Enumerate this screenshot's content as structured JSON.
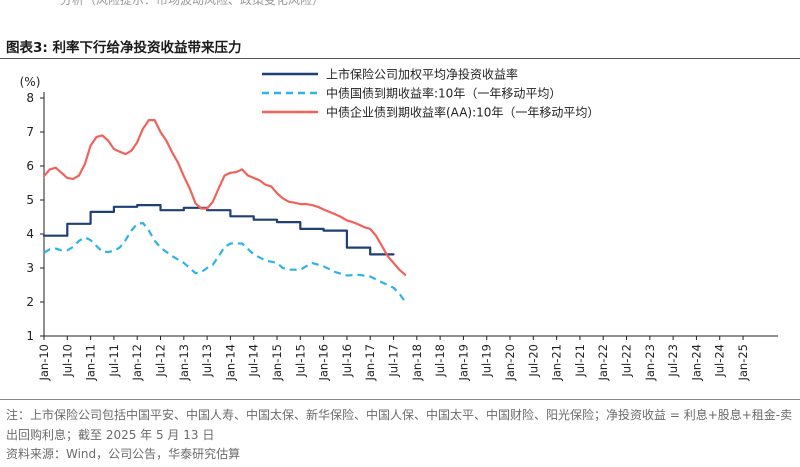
{
  "header": {
    "fragment": "分析（风险提示：市场波动风险、政策变化风险）"
  },
  "figure_title": "图表3:  利率下行给净投资收益带来压力",
  "chart_data": {
    "type": "line",
    "ylabel": "(%)",
    "ylim": [
      1,
      8
    ],
    "yticks": [
      "1",
      "2",
      "3",
      "4",
      "5",
      "6",
      "7",
      "8"
    ],
    "categories": [
      "Jan-10",
      "Jul-10",
      "Jan-11",
      "Jul-11",
      "Jan-12",
      "Jul-12",
      "Jan-13",
      "Jul-13",
      "Jan-14",
      "Jul-14",
      "Jan-15",
      "Jul-15",
      "Jan-16",
      "Jul-16",
      "Jan-17",
      "Jul-17",
      "Jan-18",
      "Jul-18",
      "Jan-19",
      "Jul-19",
      "Jan-20",
      "Jul-20",
      "Jan-21",
      "Jul-21",
      "Jan-22",
      "Jul-22",
      "Jan-23",
      "Jul-23",
      "Jan-24",
      "Jul-24",
      "Jan-25"
    ],
    "series": [
      {
        "name": "上市保险公司加权平均净投资收益率",
        "style": "step",
        "color": "#1f3f75",
        "points": [
          [
            0,
            3.95
          ],
          [
            1,
            3.95
          ],
          [
            1,
            4.3
          ],
          [
            2,
            4.3
          ],
          [
            2,
            4.65
          ],
          [
            3,
            4.65
          ],
          [
            3,
            4.8
          ],
          [
            4,
            4.8
          ],
          [
            4,
            4.85
          ],
          [
            5,
            4.85
          ],
          [
            5,
            4.7
          ],
          [
            6,
            4.7
          ],
          [
            6,
            4.77
          ],
          [
            7,
            4.77
          ],
          [
            7,
            4.7
          ],
          [
            8,
            4.7
          ],
          [
            8,
            4.52
          ],
          [
            9,
            4.52
          ],
          [
            9,
            4.42
          ],
          [
            10,
            4.42
          ],
          [
            10,
            4.35
          ],
          [
            11,
            4.35
          ],
          [
            11,
            4.15
          ],
          [
            12,
            4.15
          ],
          [
            12,
            4.1
          ],
          [
            13,
            4.1
          ],
          [
            13,
            3.6
          ],
          [
            14,
            3.6
          ],
          [
            14,
            3.4
          ],
          [
            15,
            3.4
          ]
        ]
      },
      {
        "name": "中债国债到期收益率:10年（一年移动平均）",
        "style": "dashed",
        "color": "#2db3e6",
        "points": [
          [
            0,
            3.45
          ],
          [
            0.25,
            3.55
          ],
          [
            0.5,
            3.57
          ],
          [
            0.75,
            3.52
          ],
          [
            1,
            3.52
          ],
          [
            1.25,
            3.62
          ],
          [
            1.5,
            3.8
          ],
          [
            1.75,
            3.9
          ],
          [
            2,
            3.82
          ],
          [
            2.25,
            3.65
          ],
          [
            2.5,
            3.48
          ],
          [
            2.75,
            3.47
          ],
          [
            3,
            3.5
          ],
          [
            3.25,
            3.6
          ],
          [
            3.5,
            3.82
          ],
          [
            3.75,
            4.1
          ],
          [
            4,
            4.3
          ],
          [
            4.25,
            4.32
          ],
          [
            4.5,
            4.1
          ],
          [
            4.75,
            3.8
          ],
          [
            5,
            3.6
          ],
          [
            5.5,
            3.35
          ],
          [
            6,
            3.15
          ],
          [
            6.5,
            2.85
          ],
          [
            6.75,
            2.88
          ],
          [
            7,
            3.0
          ],
          [
            7.25,
            3.1
          ],
          [
            7.5,
            3.35
          ],
          [
            7.75,
            3.62
          ],
          [
            8,
            3.72
          ],
          [
            8.5,
            3.72
          ],
          [
            9,
            3.4
          ],
          [
            9.5,
            3.22
          ],
          [
            10,
            3.15
          ],
          [
            10.25,
            3.0
          ],
          [
            10.5,
            2.95
          ],
          [
            11,
            2.95
          ],
          [
            11.5,
            3.15
          ],
          [
            12,
            3.05
          ],
          [
            12.5,
            2.88
          ],
          [
            13,
            2.78
          ],
          [
            13.5,
            2.8
          ],
          [
            14,
            2.75
          ],
          [
            14.5,
            2.58
          ],
          [
            15,
            2.42
          ],
          [
            15.25,
            2.25
          ],
          [
            15.5,
            2.0
          ]
        ]
      },
      {
        "name": "中债企业债到期收益率(AA):10年（一年移动平均）",
        "style": "solid",
        "color": "#f0625a",
        "points": [
          [
            0,
            5.7
          ],
          [
            0.25,
            5.9
          ],
          [
            0.5,
            5.95
          ],
          [
            0.75,
            5.8
          ],
          [
            1,
            5.65
          ],
          [
            1.25,
            5.62
          ],
          [
            1.5,
            5.72
          ],
          [
            1.75,
            6.05
          ],
          [
            2,
            6.6
          ],
          [
            2.25,
            6.85
          ],
          [
            2.5,
            6.9
          ],
          [
            2.75,
            6.75
          ],
          [
            3,
            6.5
          ],
          [
            3.25,
            6.42
          ],
          [
            3.5,
            6.35
          ],
          [
            3.75,
            6.45
          ],
          [
            4,
            6.7
          ],
          [
            4.25,
            7.1
          ],
          [
            4.5,
            7.35
          ],
          [
            4.75,
            7.35
          ],
          [
            5,
            7.0
          ],
          [
            5.25,
            6.75
          ],
          [
            5.5,
            6.4
          ],
          [
            5.75,
            6.1
          ],
          [
            6,
            5.7
          ],
          [
            6.25,
            5.35
          ],
          [
            6.5,
            4.9
          ],
          [
            6.75,
            4.75
          ],
          [
            7,
            4.75
          ],
          [
            7.25,
            4.95
          ],
          [
            7.5,
            5.35
          ],
          [
            7.75,
            5.72
          ],
          [
            8,
            5.8
          ],
          [
            8.25,
            5.82
          ],
          [
            8.5,
            5.9
          ],
          [
            8.75,
            5.72
          ],
          [
            9,
            5.65
          ],
          [
            9.25,
            5.58
          ],
          [
            9.5,
            5.45
          ],
          [
            9.75,
            5.4
          ],
          [
            10,
            5.2
          ],
          [
            10.25,
            5.05
          ],
          [
            10.5,
            4.95
          ],
          [
            10.75,
            4.92
          ],
          [
            11,
            4.88
          ],
          [
            11.25,
            4.88
          ],
          [
            11.5,
            4.85
          ],
          [
            11.75,
            4.8
          ],
          [
            12,
            4.72
          ],
          [
            12.25,
            4.65
          ],
          [
            12.5,
            4.58
          ],
          [
            12.75,
            4.5
          ],
          [
            13,
            4.4
          ],
          [
            13.25,
            4.35
          ],
          [
            13.5,
            4.28
          ],
          [
            13.75,
            4.2
          ],
          [
            14,
            4.15
          ],
          [
            14.25,
            3.95
          ],
          [
            14.5,
            3.65
          ],
          [
            14.75,
            3.35
          ],
          [
            15,
            3.15
          ],
          [
            15.25,
            2.95
          ],
          [
            15.5,
            2.8
          ]
        ]
      }
    ]
  },
  "note": "注：上市保险公司包括中国平安、中国人寿、中国太保、新华保险、中国人保、中国太平、中国财险、阳光保险；净投资收益 = 利息+股息+租金-卖出回购利息；截至 2025 年 5 月 13 日",
  "source": "资料来源：Wind，公司公告，华泰研究估算"
}
